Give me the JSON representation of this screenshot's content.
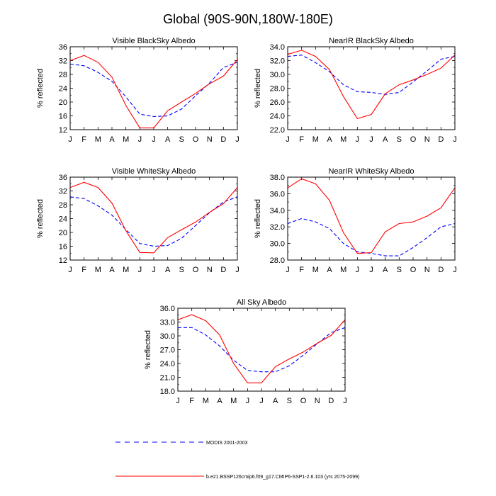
{
  "title": "Global (90S-90N,180W-180E)",
  "months": [
    "J",
    "F",
    "M",
    "A",
    "M",
    "J",
    "J",
    "A",
    "S",
    "O",
    "N",
    "D",
    "J"
  ],
  "legend": [
    {
      "label": "MODIS 2001-2003",
      "color": "#0000ff",
      "dash": "dashed"
    },
    {
      "label": "b.e21.BSSP126cmip6.f09_g17.CMIP6-SSP1-2.6.103 (yrs 2075-2099)",
      "color": "#ff0000",
      "dash": "solid"
    }
  ],
  "chart_data": [
    {
      "type": "line",
      "title": "Visible BlackSky Albedo",
      "ylabel": "% reflected",
      "ylim": [
        12,
        36
      ],
      "yticks": [
        12,
        16,
        20,
        24,
        28,
        32,
        36
      ],
      "ytick_labels": [
        "12",
        "16",
        "20",
        "24",
        "28",
        "32",
        "36"
      ],
      "x": [
        "J",
        "F",
        "M",
        "A",
        "M",
        "J",
        "J",
        "A",
        "S",
        "O",
        "N",
        "D",
        "J"
      ],
      "series": [
        {
          "name": "MODIS 2001-2003",
          "color": "#0000ff",
          "dash": "dashed",
          "values": [
            31.0,
            30.5,
            28.6,
            26.0,
            21.5,
            16.5,
            15.8,
            16.0,
            18.0,
            21.8,
            25.5,
            30.0,
            31.5
          ]
        },
        {
          "name": "b.e21.BSSP126cmip6.f09_g17.CMIP6-SSP1-2.6.103 (yrs 2075-2099)",
          "color": "#ff0000",
          "dash": "solid",
          "values": [
            32.0,
            33.5,
            31.5,
            27.2,
            19.0,
            12.5,
            12.5,
            17.5,
            20.0,
            22.5,
            25.3,
            27.5,
            32.3
          ]
        }
      ]
    },
    {
      "type": "line",
      "title": "NearIR BlackSky Albedo",
      "ylabel": "% reflected",
      "ylim": [
        22,
        34
      ],
      "yticks": [
        22,
        24,
        26,
        28,
        30,
        32,
        34
      ],
      "ytick_labels": [
        "22.0",
        "24.0",
        "26.0",
        "28.0",
        "30.0",
        "32.0",
        "34.0"
      ],
      "x": [
        "J",
        "F",
        "M",
        "A",
        "M",
        "J",
        "J",
        "A",
        "S",
        "O",
        "N",
        "D",
        "J"
      ],
      "series": [
        {
          "name": "MODIS 2001-2003",
          "color": "#0000ff",
          "dash": "dashed",
          "values": [
            32.6,
            32.8,
            31.7,
            30.4,
            28.5,
            27.5,
            27.4,
            27.1,
            27.4,
            28.9,
            30.5,
            32.2,
            32.6
          ]
        },
        {
          "name": "b.e21.BSSP126cmip6.f09_g17.CMIP6-SSP1-2.6.103 (yrs 2075-2099)",
          "color": "#ff0000",
          "dash": "solid",
          "values": [
            32.9,
            33.5,
            32.6,
            30.7,
            26.8,
            23.6,
            24.2,
            27.2,
            28.5,
            29.2,
            30.0,
            30.9,
            32.8
          ]
        }
      ]
    },
    {
      "type": "line",
      "title": "Visible WhiteSky Albedo",
      "ylabel": "% reflected",
      "ylim": [
        12,
        36
      ],
      "yticks": [
        12,
        16,
        20,
        24,
        28,
        32,
        36
      ],
      "ytick_labels": [
        "12",
        "16",
        "20",
        "24",
        "28",
        "32",
        "36"
      ],
      "x": [
        "J",
        "F",
        "M",
        "A",
        "M",
        "J",
        "J",
        "A",
        "S",
        "O",
        "N",
        "D",
        "J"
      ],
      "series": [
        {
          "name": "MODIS 2001-2003",
          "color": "#0000ff",
          "dash": "dashed",
          "values": [
            30.3,
            29.8,
            27.7,
            25.0,
            20.8,
            16.8,
            16.0,
            16.2,
            18.3,
            22.0,
            25.7,
            28.8,
            30.3
          ]
        },
        {
          "name": "b.e21.BSSP126cmip6.f09_g17.CMIP6-SSP1-2.6.103 (yrs 2075-2099)",
          "color": "#ff0000",
          "dash": "solid",
          "values": [
            33.0,
            34.5,
            33.0,
            28.5,
            20.5,
            14.2,
            14.1,
            18.5,
            20.8,
            23.0,
            25.8,
            28.3,
            33.0
          ]
        }
      ]
    },
    {
      "type": "line",
      "title": "NearIR WhiteSky Albedo",
      "ylabel": "% reflected",
      "ylim": [
        28,
        38
      ],
      "yticks": [
        28,
        30,
        32,
        34,
        36,
        38
      ],
      "ytick_labels": [
        "28.0",
        "30.0",
        "32.0",
        "34.0",
        "36.0",
        "38.0"
      ],
      "x": [
        "J",
        "F",
        "M",
        "A",
        "M",
        "J",
        "J",
        "A",
        "S",
        "O",
        "N",
        "D",
        "J"
      ],
      "series": [
        {
          "name": "MODIS 2001-2003",
          "color": "#0000ff",
          "dash": "dashed",
          "values": [
            32.4,
            33.0,
            32.6,
            31.8,
            30.0,
            29.0,
            28.8,
            28.5,
            28.5,
            29.5,
            30.7,
            32.0,
            32.4
          ]
        },
        {
          "name": "b.e21.BSSP126cmip6.f09_g17.CMIP6-SSP1-2.6.103 (yrs 2075-2099)",
          "color": "#ff0000",
          "dash": "solid",
          "values": [
            36.7,
            37.8,
            37.2,
            35.2,
            31.3,
            28.8,
            28.9,
            31.4,
            32.4,
            32.6,
            33.3,
            34.3,
            36.7
          ]
        }
      ]
    },
    {
      "type": "line",
      "title": "All Sky Albedo",
      "ylabel": "% reflected",
      "ylim": [
        18,
        36
      ],
      "yticks": [
        18,
        21,
        24,
        27,
        30,
        33,
        36
      ],
      "ytick_labels": [
        "18.0",
        "21.0",
        "24.0",
        "27.0",
        "30.0",
        "33.0",
        "36.0"
      ],
      "x": [
        "J",
        "F",
        "M",
        "A",
        "M",
        "J",
        "J",
        "A",
        "S",
        "O",
        "N",
        "D",
        "J"
      ],
      "series": [
        {
          "name": "MODIS 2001-2003",
          "color": "#0000ff",
          "dash": "dashed",
          "values": [
            31.8,
            31.8,
            30.2,
            27.8,
            24.7,
            22.5,
            22.2,
            22.2,
            23.5,
            25.8,
            28.3,
            30.7,
            31.8
          ]
        },
        {
          "name": "b.e21.BSSP126cmip6.f09_g17.CMIP6-SSP1-2.6.103 (yrs 2075-2099)",
          "color": "#ff0000",
          "dash": "solid",
          "values": [
            33.5,
            34.6,
            33.3,
            30.2,
            24.0,
            19.8,
            19.8,
            23.3,
            25.0,
            26.5,
            28.4,
            30.1,
            33.5
          ]
        }
      ]
    }
  ]
}
